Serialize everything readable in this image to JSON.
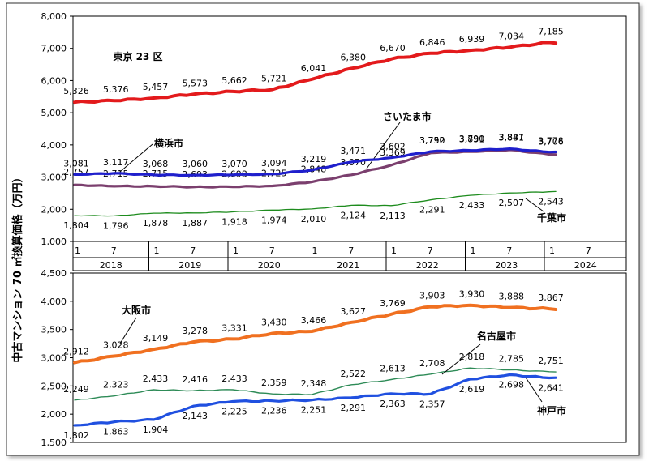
{
  "figure": {
    "ylabel": "中古マンション 70 ㎡換算価格（万円）",
    "x_month_labels": [
      "1",
      "7"
    ],
    "year_labels": [
      "2018",
      "2019",
      "2020",
      "2021",
      "2022",
      "2023",
      "2024"
    ]
  },
  "colors": {
    "tokyo": "#e31a1c",
    "saitama": "#7b3f6e",
    "yokohama": "#1f1fcc",
    "chiba": "#1e8c1e",
    "osaka": "#f07020",
    "nagoya": "#2e8b57",
    "kobe": "#2050e0",
    "axis": "#000000"
  },
  "chart_data": [
    {
      "type": "line",
      "title": "",
      "xlabel": "",
      "ylabel": "中古マンション 70 ㎡換算価格（万円）",
      "ylim": [
        1000,
        8000
      ],
      "yticks": [
        "1,000",
        "2,000",
        "3,000",
        "4,000",
        "5,000",
        "6,000",
        "7,000",
        "8,000"
      ],
      "x": [
        "2018-01",
        "2018-07",
        "2019-01",
        "2019-07",
        "2020-01",
        "2020-07",
        "2021-01",
        "2021-07",
        "2022-01",
        "2022-07",
        "2023-01",
        "2023-07",
        "2024-01"
      ],
      "series": [
        {
          "name": "東京 23 区",
          "values": [
            5326,
            5376,
            5457,
            5573,
            5662,
            5721,
            6041,
            6380,
            6670,
            6846,
            6939,
            7034,
            7185
          ],
          "labels": [
            "5,326",
            "5,376",
            "5,457",
            "5,573",
            "5,662",
            "5,721",
            "6,041",
            "6,380",
            "6,670",
            "6,846",
            "6,939",
            "7,034",
            "7,185"
          ]
        },
        {
          "name": "さいたま市",
          "values": [
            2757,
            2715,
            2715,
            2693,
            2698,
            2725,
            2848,
            3070,
            3369,
            3750,
            3790,
            3847,
            3706
          ],
          "labels": [
            "2,757",
            "2,715",
            "2,715",
            "2,693",
            "2,698",
            "2,725",
            "2,848",
            "3,070",
            "3,369",
            "3,750",
            "3,790",
            "3,847",
            "3,706"
          ]
        },
        {
          "name": "横浜市",
          "values": [
            3081,
            3117,
            3068,
            3060,
            3070,
            3094,
            3219,
            3471,
            3602,
            3792,
            3831,
            3881,
            3778
          ],
          "labels": [
            "3,081",
            "3,117",
            "3,068",
            "3,060",
            "3,070",
            "3,094",
            "3,219",
            "3,471",
            "3,602",
            "3,792",
            "3,831",
            "3,881",
            "3,778"
          ]
        },
        {
          "name": "千葉市",
          "values": [
            1804,
            1796,
            1878,
            1887,
            1918,
            1974,
            2010,
            2124,
            2113,
            2291,
            2433,
            2507,
            2543
          ],
          "labels": [
            "1,804",
            "1,796",
            "1,878",
            "1,887",
            "1,918",
            "1,974",
            "2,010",
            "2,124",
            "2,113",
            "2,291",
            "2,433",
            "2,507",
            "2,543"
          ]
        }
      ]
    },
    {
      "type": "line",
      "title": "",
      "xlabel": "",
      "ylabel": "",
      "ylim": [
        1500,
        4500
      ],
      "yticks": [
        "1,500",
        "2,000",
        "2,500",
        "3,000",
        "3,500",
        "4,000",
        "4,500"
      ],
      "x": [
        "2018-01",
        "2018-07",
        "2019-01",
        "2019-07",
        "2020-01",
        "2020-07",
        "2021-01",
        "2021-07",
        "2022-01",
        "2022-07",
        "2023-01",
        "2023-07",
        "2024-01"
      ],
      "series": [
        {
          "name": "大阪市",
          "values": [
            2912,
            3028,
            3149,
            3278,
            3331,
            3430,
            3466,
            3627,
            3769,
            3903,
            3930,
            3888,
            3867
          ],
          "labels": [
            "2,912",
            "3,028",
            "3,149",
            "3,278",
            "3,331",
            "3,430",
            "3,466",
            "3,627",
            "3,769",
            "3,903",
            "3,930",
            "3,888",
            "3,867"
          ]
        },
        {
          "name": "名古屋市",
          "values": [
            2249,
            2323,
            2433,
            2416,
            2433,
            2359,
            2348,
            2522,
            2613,
            2708,
            2818,
            2785,
            2751
          ],
          "labels": [
            "2,249",
            "2,323",
            "2,433",
            "2,416",
            "2,433",
            "2,359",
            "2,348",
            "2,522",
            "2,613",
            "2,708",
            "2,818",
            "2,785",
            "2,751"
          ]
        },
        {
          "name": "神戸市",
          "values": [
            1802,
            1863,
            1904,
            2143,
            2225,
            2236,
            2251,
            2291,
            2363,
            2357,
            2619,
            2698,
            2641
          ],
          "labels": [
            "1,802",
            "1,863",
            "1,904",
            "2,143",
            "2,225",
            "2,236",
            "2,251",
            "2,291",
            "2,363",
            "2,357",
            "2,619",
            "2,698",
            "2,641"
          ]
        }
      ]
    }
  ]
}
